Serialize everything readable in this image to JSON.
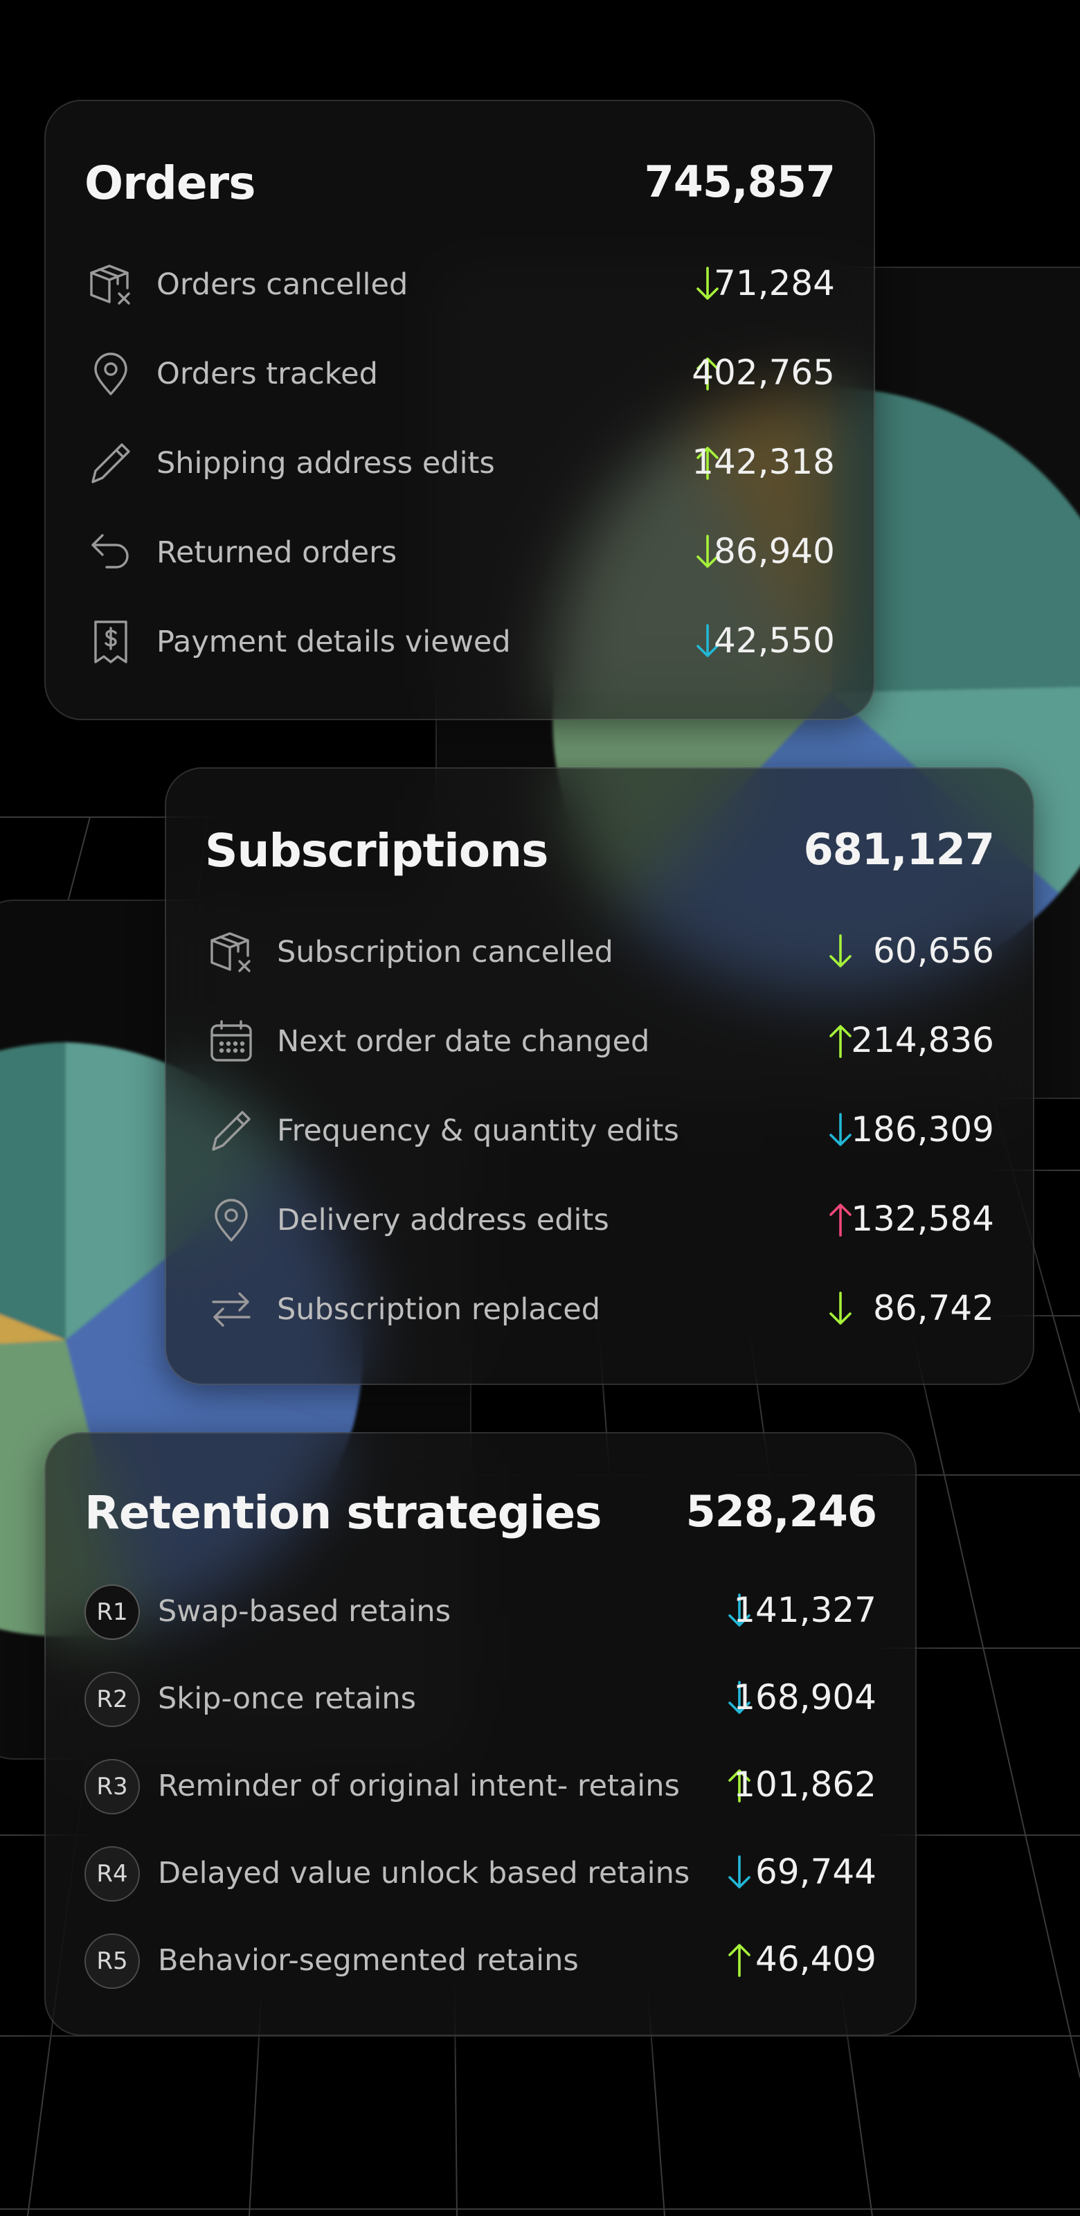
{
  "theme": {
    "up_color": "#a6f23a",
    "down_color": "#a6f23a",
    "down_alt_color": "#22b8d6",
    "up_alt_color": "#f0487a"
  },
  "orders": {
    "title": "Orders",
    "total": "745,857",
    "rows": [
      {
        "icon": "box-cancel-icon",
        "label": "Orders cancelled",
        "trend": "down",
        "trend_color": "#a6f23a",
        "value": "71,284"
      },
      {
        "icon": "location-pin-icon",
        "label": "Orders tracked",
        "trend": "up",
        "trend_color": "#a6f23a",
        "value": "402,765"
      },
      {
        "icon": "pencil-icon",
        "label": "Shipping address edits",
        "trend": "up",
        "trend_color": "#a6f23a",
        "value": "142,318"
      },
      {
        "icon": "return-arrow-icon",
        "label": "Returned orders",
        "trend": "down",
        "trend_color": "#a6f23a",
        "value": "86,940"
      },
      {
        "icon": "receipt-dollar-icon",
        "label": "Payment details viewed",
        "trend": "down",
        "trend_color": "#22b8d6",
        "value": "42,550"
      }
    ]
  },
  "subscriptions": {
    "title": "Subscriptions",
    "total": "681,127",
    "rows": [
      {
        "icon": "box-cancel-icon",
        "label": "Subscription cancelled",
        "trend": "down",
        "trend_color": "#a6f23a",
        "value": "60,656"
      },
      {
        "icon": "calendar-icon",
        "label": "Next order date changed",
        "trend": "up",
        "trend_color": "#a6f23a",
        "value": "214,836"
      },
      {
        "icon": "pencil-icon",
        "label": "Frequency & quantity edits",
        "trend": "down",
        "trend_color": "#22b8d6",
        "value": "186,309"
      },
      {
        "icon": "location-pin-icon",
        "label": "Delivery address edits",
        "trend": "up",
        "trend_color": "#f0487a",
        "value": "132,584"
      },
      {
        "icon": "swap-arrows-icon",
        "label": "Subscription replaced",
        "trend": "down",
        "trend_color": "#a6f23a",
        "value": "86,742"
      }
    ]
  },
  "retention": {
    "title": "Retention strategies",
    "total": "528,246",
    "rows": [
      {
        "badge": "R1",
        "label": "Swap-based retains",
        "trend": "down",
        "trend_color": "#22b8d6",
        "value": "141,327"
      },
      {
        "badge": "R2",
        "label": "Skip-once retains",
        "trend": "down",
        "trend_color": "#22b8d6",
        "value": "168,904"
      },
      {
        "badge": "R3",
        "label": "Reminder of original intent- retains",
        "trend": "up",
        "trend_color": "#a6f23a",
        "value": "101,862"
      },
      {
        "badge": "R4",
        "label": "Delayed value unlock based retains",
        "trend": "down",
        "trend_color": "#22b8d6",
        "value": "69,744"
      },
      {
        "badge": "R5",
        "label": "Behavior-segmented retains",
        "trend": "up",
        "trend_color": "#a6f23a",
        "value": "46,409"
      }
    ]
  }
}
